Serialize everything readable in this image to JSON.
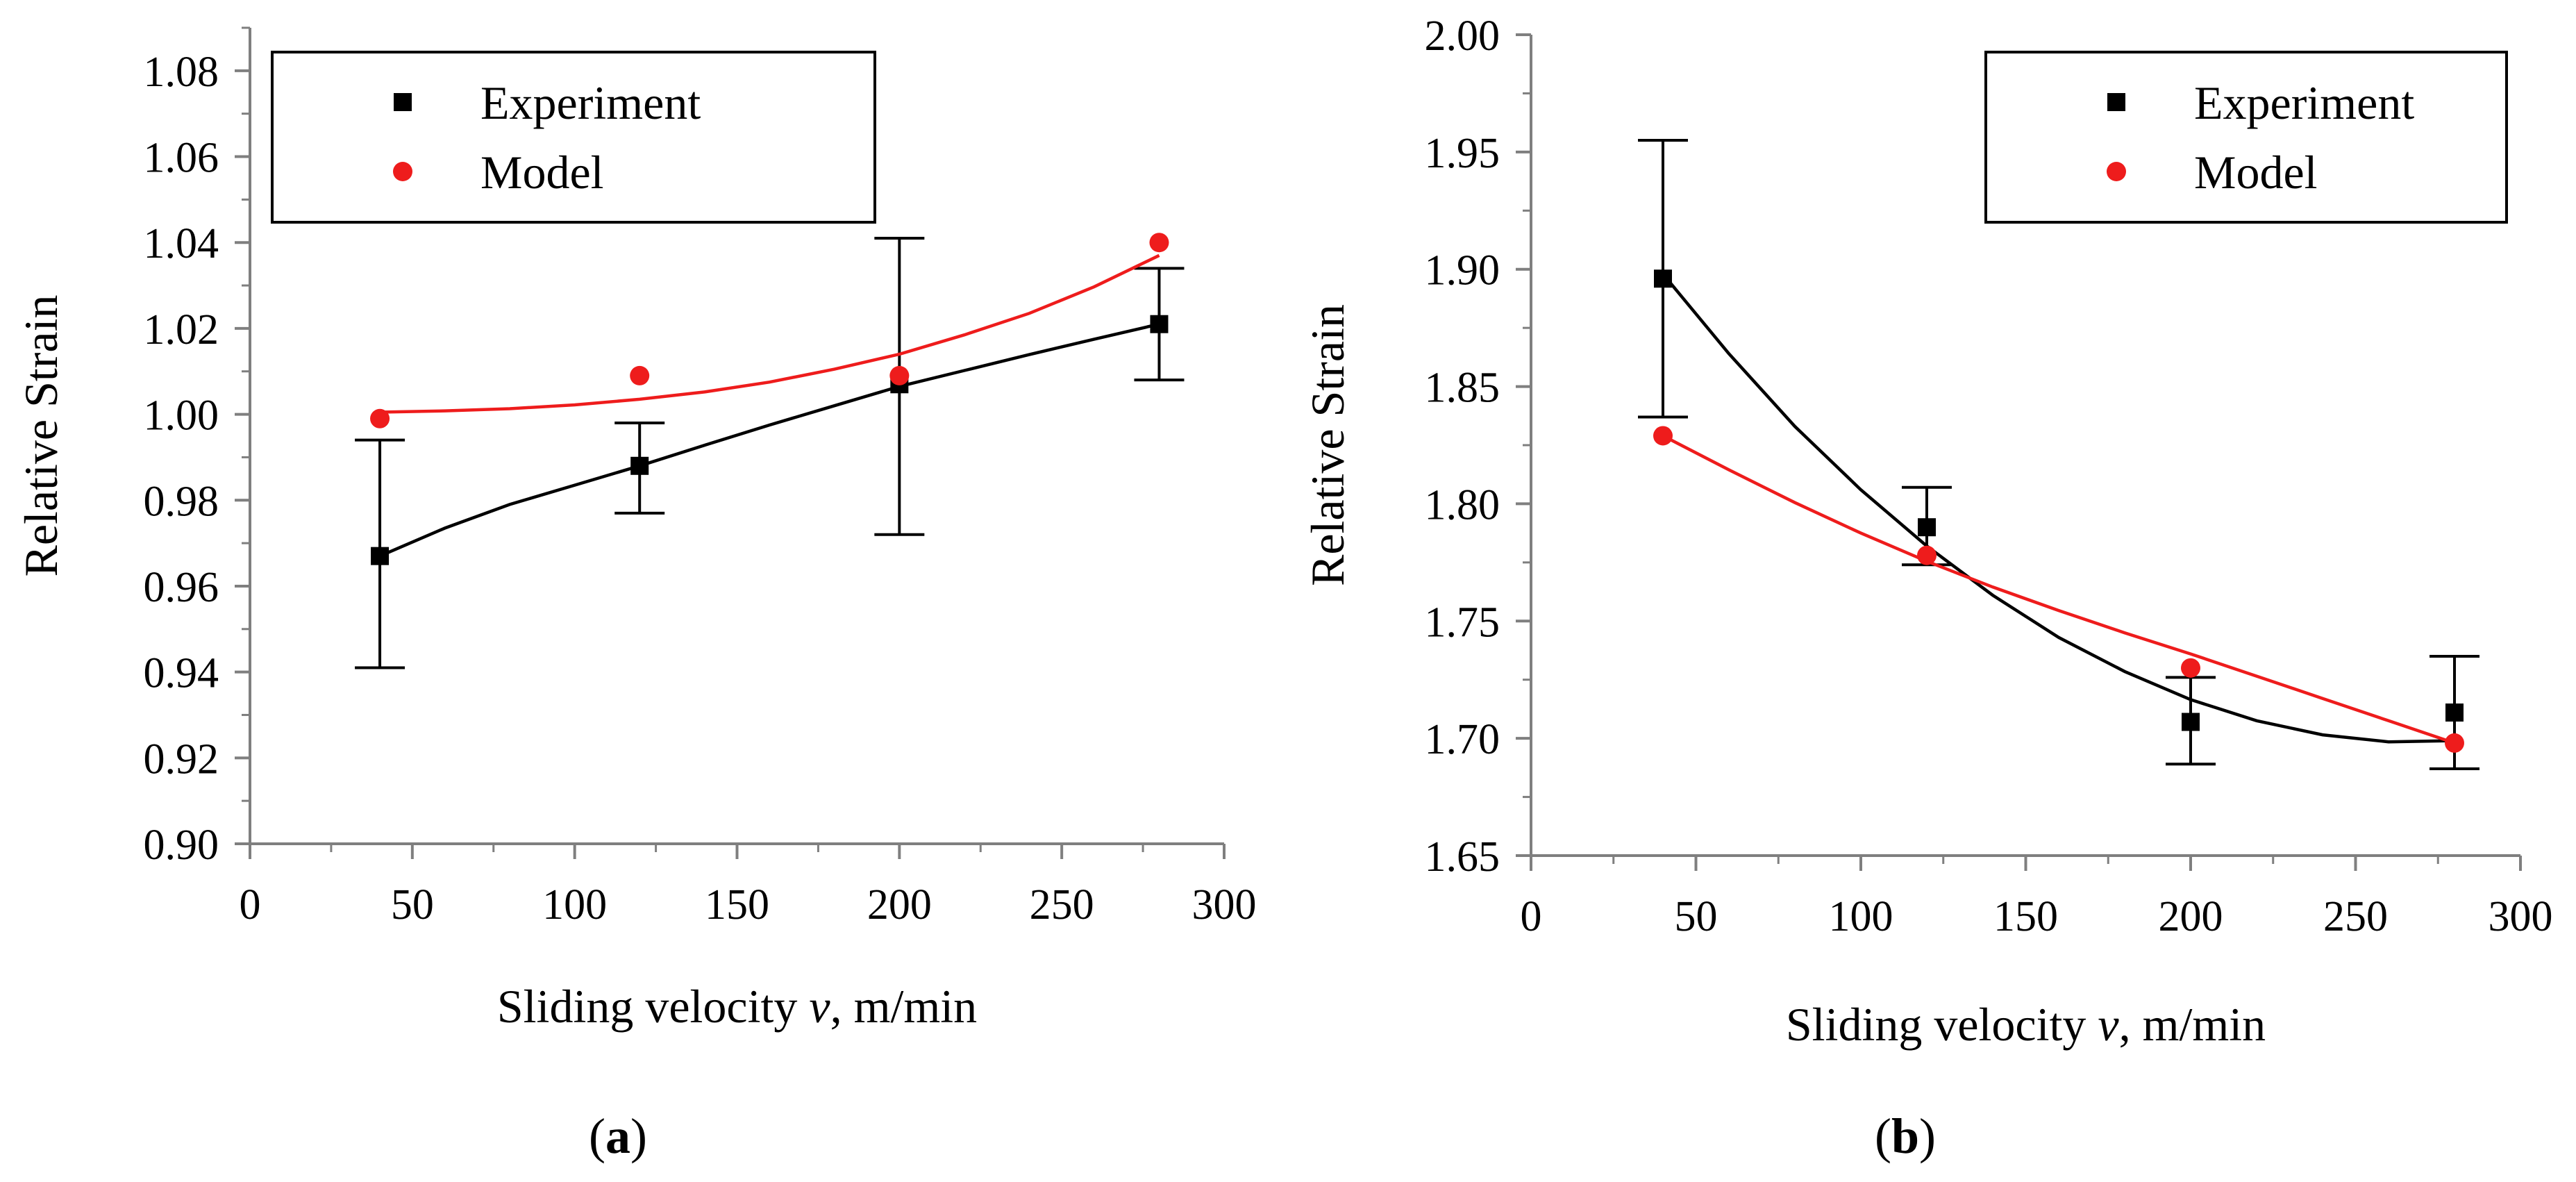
{
  "figure": {
    "panels": [
      {
        "label_open": "(",
        "label_letter": "a",
        "label_close": ")"
      },
      {
        "label_open": "(",
        "label_letter": "b",
        "label_close": ")"
      }
    ]
  },
  "colors": {
    "experiment": "#000000",
    "model": "#ee1c1c",
    "axis": "#7f7f7f"
  },
  "chart_data": [
    {
      "type": "scatter",
      "panel": "a",
      "xlabel_parts": [
        "Sliding velocity ",
        "v",
        ", m/min"
      ],
      "ylabel": "Relative Strain",
      "xlim": [
        0,
        300
      ],
      "ylim": [
        0.9,
        1.09
      ],
      "x_ticks": [
        0,
        50,
        100,
        150,
        200,
        250,
        300
      ],
      "x_tick_labels": [
        "0",
        "50",
        "100",
        "150",
        "200",
        "250",
        "300"
      ],
      "y_ticks": [
        0.9,
        0.92,
        0.94,
        0.96,
        0.98,
        1.0,
        1.02,
        1.04,
        1.06,
        1.08
      ],
      "y_tick_labels": [
        "0.90",
        "0.92",
        "0.94",
        "0.96",
        "0.98",
        "1.00",
        "1.02",
        "1.04",
        "1.06",
        "1.08"
      ],
      "legend": {
        "position": "top-left",
        "entries": [
          "Experiment",
          "Model"
        ]
      },
      "series": [
        {
          "name": "Experiment",
          "marker": "square",
          "x": [
            40,
            120,
            200,
            280
          ],
          "y": [
            0.967,
            0.988,
            1.007,
            1.021
          ],
          "err_low": [
            0.941,
            0.977,
            0.972,
            1.008
          ],
          "err_high": [
            0.994,
            0.998,
            1.041,
            1.034
          ],
          "trend": [
            [
              40,
              0.967
            ],
            [
              60,
              0.9735
            ],
            [
              80,
              0.979
            ],
            [
              100,
              0.9835
            ],
            [
              120,
              0.988
            ],
            [
              140,
              0.9928
            ],
            [
              160,
              0.9975
            ],
            [
              180,
              1.002
            ],
            [
              200,
              1.0065
            ],
            [
              220,
              1.0102
            ],
            [
              240,
              1.0139
            ],
            [
              260,
              1.0175
            ],
            [
              280,
              1.021
            ]
          ]
        },
        {
          "name": "Model",
          "marker": "circle",
          "x": [
            40,
            120,
            200,
            280
          ],
          "y": [
            0.999,
            1.009,
            1.009,
            1.04
          ],
          "trend": [
            [
              40,
              1.0005
            ],
            [
              60,
              1.0008
            ],
            [
              80,
              1.0013
            ],
            [
              100,
              1.0022
            ],
            [
              120,
              1.0035
            ],
            [
              140,
              1.0052
            ],
            [
              160,
              1.0075
            ],
            [
              180,
              1.0105
            ],
            [
              200,
              1.014
            ],
            [
              220,
              1.0185
            ],
            [
              240,
              1.0235
            ],
            [
              260,
              1.0297
            ],
            [
              280,
              1.037
            ]
          ]
        }
      ]
    },
    {
      "type": "scatter",
      "panel": "b",
      "xlabel_parts": [
        "Sliding velocity ",
        "v",
        ", m/min"
      ],
      "ylabel": "Relative Strain",
      "xlim": [
        0,
        300
      ],
      "ylim": [
        1.65,
        2.0
      ],
      "x_ticks": [
        0,
        50,
        100,
        150,
        200,
        250,
        300
      ],
      "x_tick_labels": [
        "0",
        "50",
        "100",
        "150",
        "200",
        "250",
        "300"
      ],
      "y_ticks": [
        1.65,
        1.7,
        1.75,
        1.8,
        1.85,
        1.9,
        1.95,
        2.0
      ],
      "y_tick_labels": [
        "1.65",
        "1.70",
        "1.75",
        "1.80",
        "1.85",
        "1.90",
        "1.95",
        "2.00"
      ],
      "legend": {
        "position": "top-right",
        "entries": [
          "Experiment",
          "Model"
        ]
      },
      "series": [
        {
          "name": "Experiment",
          "marker": "square",
          "x": [
            40,
            120,
            200,
            280
          ],
          "y": [
            1.896,
            1.79,
            1.707,
            1.711
          ],
          "err_low": [
            1.837,
            1.774,
            1.689,
            1.687
          ],
          "err_high": [
            1.955,
            1.807,
            1.726,
            1.735
          ],
          "trend": [
            [
              40,
              1.898
            ],
            [
              60,
              1.864
            ],
            [
              80,
              1.833
            ],
            [
              100,
              1.806
            ],
            [
              120,
              1.782
            ],
            [
              140,
              1.761
            ],
            [
              160,
              1.743
            ],
            [
              180,
              1.7285
            ],
            [
              200,
              1.7165
            ],
            [
              220,
              1.7075
            ],
            [
              240,
              1.7015
            ],
            [
              260,
              1.6985
            ],
            [
              280,
              1.699
            ]
          ]
        },
        {
          "name": "Model",
          "marker": "circle",
          "x": [
            40,
            120,
            200,
            280
          ],
          "y": [
            1.829,
            1.778,
            1.73,
            1.698
          ],
          "trend": [
            [
              40,
              1.829
            ],
            [
              60,
              1.8145
            ],
            [
              80,
              1.8005
            ],
            [
              100,
              1.7875
            ],
            [
              120,
              1.7755
            ],
            [
              140,
              1.7645
            ],
            [
              160,
              1.7545
            ],
            [
              180,
              1.745
            ],
            [
              200,
              1.736
            ],
            [
              220,
              1.7265
            ],
            [
              240,
              1.717
            ],
            [
              260,
              1.7075
            ],
            [
              280,
              1.698
            ]
          ]
        }
      ]
    }
  ]
}
